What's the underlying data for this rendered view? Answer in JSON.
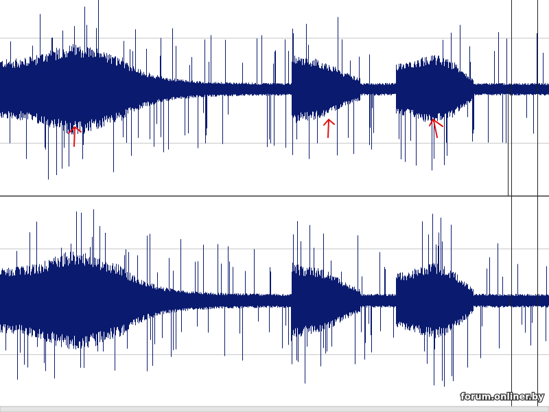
{
  "watermark": "forum.onliner.by"
}
